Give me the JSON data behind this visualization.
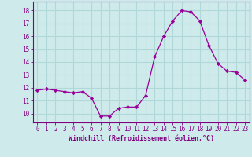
{
  "x": [
    0,
    1,
    2,
    3,
    4,
    5,
    6,
    7,
    8,
    9,
    10,
    11,
    12,
    13,
    14,
    15,
    16,
    17,
    18,
    19,
    20,
    21,
    22,
    23
  ],
  "y": [
    11.8,
    11.9,
    11.8,
    11.7,
    11.6,
    11.7,
    11.2,
    9.8,
    9.8,
    10.4,
    10.5,
    10.5,
    11.4,
    14.4,
    16.0,
    17.2,
    18.0,
    17.9,
    17.2,
    15.3,
    13.9,
    13.3,
    13.2,
    12.6
  ],
  "line_color": "#990099",
  "marker": "D",
  "marker_size": 2.2,
  "bg_color": "#ceeaea",
  "grid_color": "#b0d8d8",
  "xlabel": "Windchill (Refroidissement éolien,°C)",
  "xlabel_color": "#800080",
  "tick_color": "#800080",
  "spine_color": "#800080",
  "ylim": [
    9.3,
    18.7
  ],
  "yticks": [
    10,
    11,
    12,
    13,
    14,
    15,
    16,
    17,
    18
  ],
  "xlim": [
    -0.5,
    23.5
  ],
  "xticks": [
    0,
    1,
    2,
    3,
    4,
    5,
    6,
    7,
    8,
    9,
    10,
    11,
    12,
    13,
    14,
    15,
    16,
    17,
    18,
    19,
    20,
    21,
    22,
    23
  ],
  "tick_fontsize": 5.5,
  "xlabel_fontsize": 6.0
}
